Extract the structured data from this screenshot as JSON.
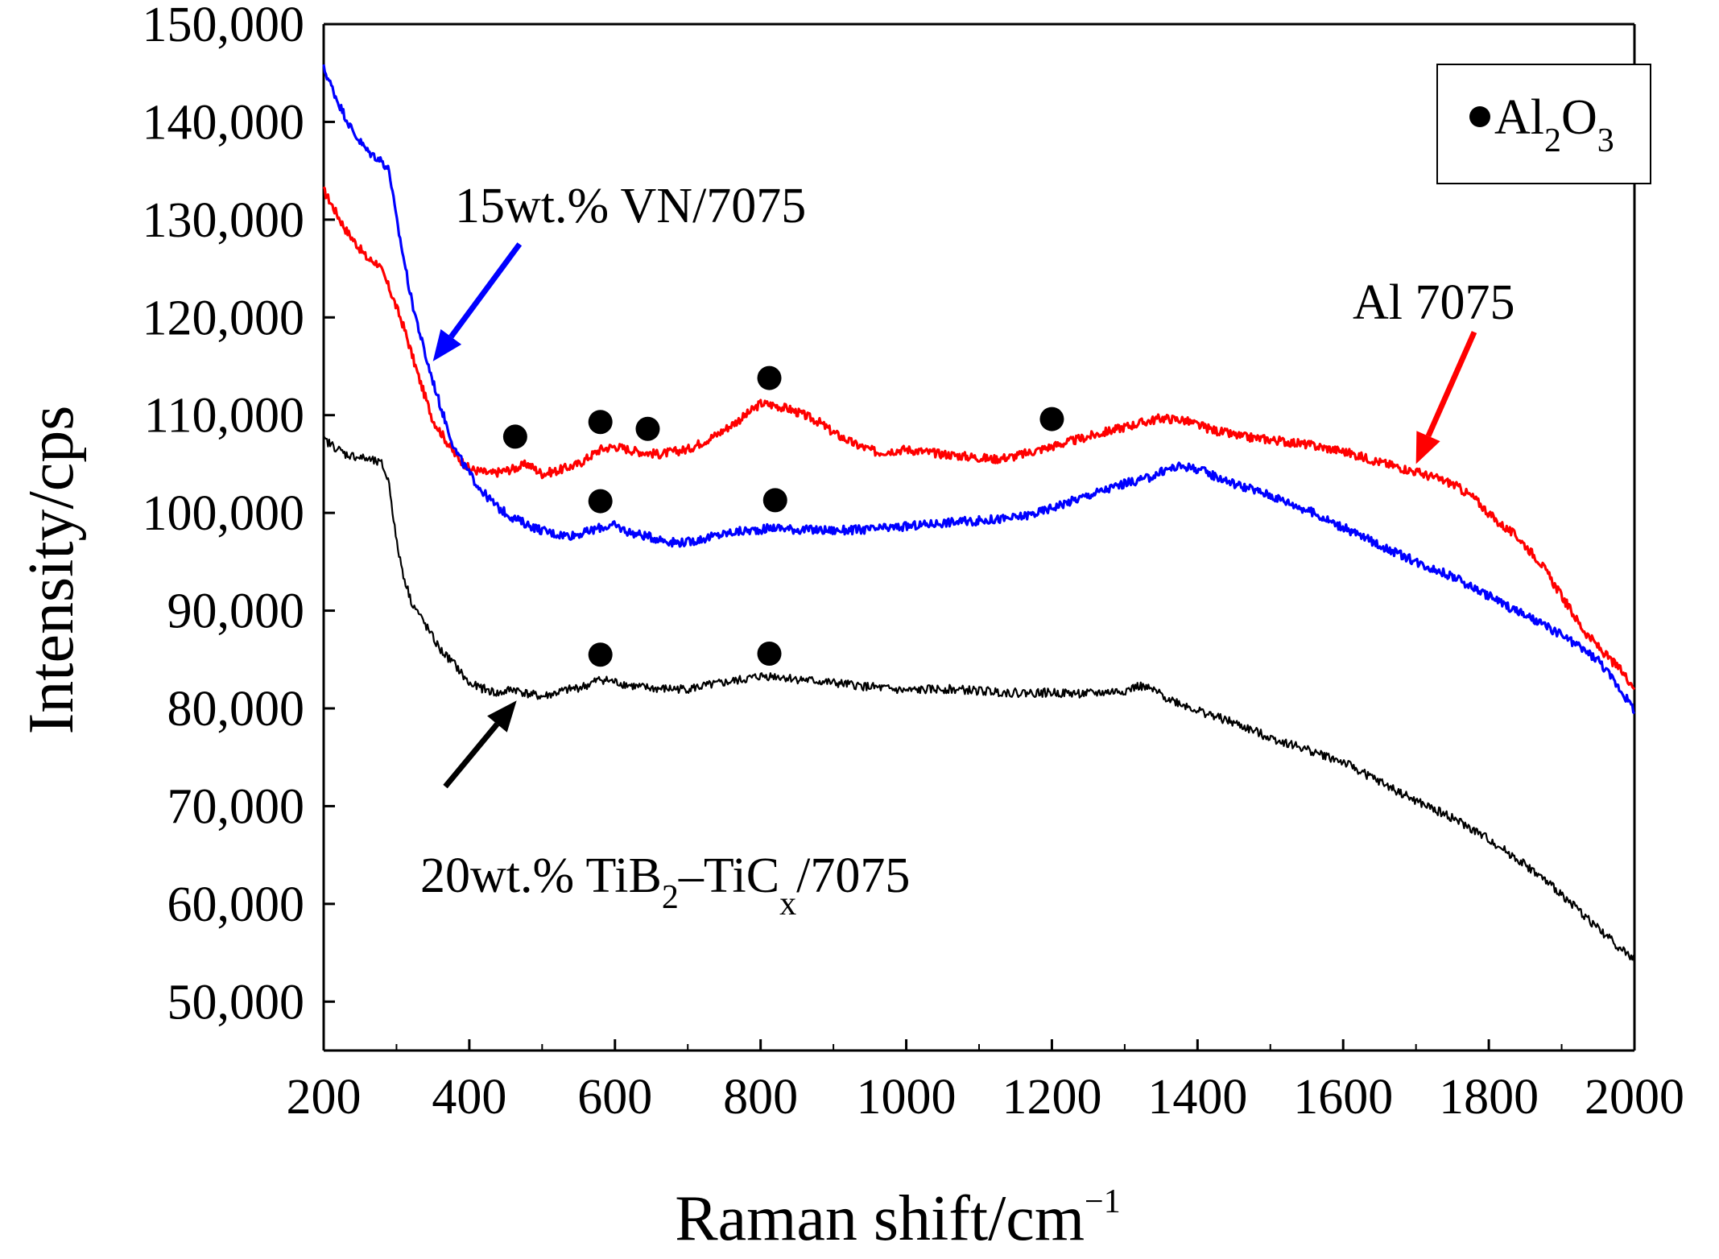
{
  "chart_data": {
    "type": "line",
    "xlabel": "Raman shift/cm",
    "xlabel_sup": "−1",
    "ylabel": "Intensity/cps",
    "xlim": [
      200,
      2000
    ],
    "ylim": [
      45000,
      150000
    ],
    "x_ticks": [
      200,
      400,
      600,
      800,
      1000,
      1200,
      1400,
      1600,
      1800,
      2000
    ],
    "y_ticks": [
      50000,
      60000,
      70000,
      80000,
      90000,
      100000,
      110000,
      120000,
      130000,
      140000,
      150000
    ],
    "x_tick_labels": [
      "200",
      "400",
      "600",
      "800",
      "1000",
      "1200",
      "1400",
      "1600",
      "1800",
      "2000"
    ],
    "y_tick_labels": [
      "50,000",
      "60,000",
      "70,000",
      "80,000",
      "90,000",
      "100,000",
      "110,000",
      "120,000",
      "130,000",
      "140,000",
      "150,000"
    ],
    "grid": false,
    "legend": {
      "position": "top-right",
      "marker": "circle",
      "label_parts": [
        "Al",
        "2",
        "O",
        "3"
      ]
    },
    "series": [
      {
        "key": "al7075",
        "color": "#ff0000",
        "x": [
          200,
          230,
          260,
          275,
          290,
          310,
          330,
          350,
          380,
          400,
          430,
          460,
          480,
          500,
          520,
          550,
          580,
          600,
          630,
          660,
          700,
          740,
          780,
          800,
          820,
          840,
          860,
          880,
          900,
          930,
          960,
          1000,
          1040,
          1080,
          1120,
          1150,
          1180,
          1210,
          1250,
          1300,
          1350,
          1380,
          1420,
          1460,
          1500,
          1550,
          1600,
          1650,
          1700,
          1750,
          1780,
          1810,
          1840,
          1870,
          1900,
          1930,
          1960,
          1980,
          2000
        ],
        "y": [
          133000,
          129000,
          126000,
          125500,
          123000,
          119000,
          114000,
          109500,
          106000,
          104500,
          104000,
          104500,
          105000,
          104000,
          104300,
          105000,
          106500,
          106800,
          106300,
          106000,
          106500,
          108000,
          110000,
          111200,
          111000,
          110600,
          110000,
          109300,
          108200,
          107000,
          106200,
          106500,
          106100,
          105800,
          105500,
          105800,
          106400,
          107000,
          107800,
          108800,
          109700,
          109500,
          108500,
          107800,
          107500,
          107000,
          106300,
          105200,
          104200,
          103000,
          101500,
          99200,
          97500,
          95000,
          91500,
          88000,
          85500,
          84000,
          82200
        ]
      },
      {
        "key": "vn7075",
        "color": "#0000ff",
        "x": [
          200,
          220,
          240,
          260,
          280,
          290,
          300,
          320,
          340,
          360,
          380,
          400,
          420,
          440,
          460,
          480,
          500,
          520,
          540,
          560,
          580,
          600,
          620,
          650,
          680,
          700,
          730,
          760,
          800,
          820,
          850,
          900,
          950,
          1000,
          1050,
          1100,
          1150,
          1180,
          1210,
          1250,
          1300,
          1330,
          1360,
          1380,
          1400,
          1450,
          1500,
          1550,
          1600,
          1650,
          1700,
          1750,
          1800,
          1850,
          1900,
          1950,
          1980,
          2000
        ],
        "y": [
          145500,
          142000,
          139000,
          137000,
          136000,
          135000,
          130000,
          122000,
          116000,
          111000,
          106500,
          104000,
          102000,
          100500,
          99500,
          98800,
          98200,
          97800,
          97700,
          98000,
          98500,
          98700,
          98000,
          97500,
          97000,
          97000,
          97500,
          98000,
          98300,
          98500,
          98300,
          98200,
          98300,
          98600,
          99000,
          99200,
          99500,
          100000,
          100800,
          101800,
          103000,
          103500,
          104500,
          104800,
          104500,
          103000,
          101800,
          100300,
          98500,
          96700,
          95000,
          93500,
          91500,
          89500,
          87500,
          85000,
          82000,
          79800
        ]
      },
      {
        "key": "tib2",
        "color": "#000000",
        "x": [
          200,
          230,
          260,
          280,
          290,
          300,
          310,
          320,
          340,
          360,
          380,
          400,
          420,
          440,
          460,
          480,
          500,
          530,
          560,
          580,
          600,
          630,
          660,
          700,
          740,
          780,
          800,
          820,
          850,
          900,
          950,
          1000,
          1050,
          1100,
          1150,
          1200,
          1250,
          1300,
          1320,
          1340,
          1360,
          1400,
          1450,
          1500,
          1550,
          1600,
          1650,
          1700,
          1750,
          1800,
          1850,
          1900,
          1950,
          2000
        ],
        "y": [
          107500,
          106000,
          105500,
          105000,
          103000,
          97000,
          93500,
          91000,
          88500,
          86000,
          84500,
          82500,
          82000,
          81500,
          82000,
          81500,
          81200,
          81800,
          82300,
          83000,
          82700,
          82200,
          82000,
          82000,
          82500,
          83000,
          83300,
          83300,
          83000,
          82600,
          82200,
          81800,
          82000,
          81800,
          81600,
          81600,
          81500,
          81800,
          82300,
          81800,
          81000,
          79800,
          78500,
          77000,
          75800,
          74500,
          72500,
          70500,
          68800,
          66600,
          64000,
          61000,
          57500,
          54200
        ]
      }
    ],
    "markers": {
      "al7075": [
        [
          463,
          107800
        ],
        [
          580,
          109300
        ],
        [
          645,
          108600
        ],
        [
          812,
          113800
        ],
        [
          1200,
          109600
        ]
      ],
      "vn7075": [
        [
          580,
          101200
        ],
        [
          820,
          101300
        ]
      ],
      "tib2": [
        [
          580,
          85500
        ],
        [
          812,
          85600
        ]
      ]
    },
    "annotations": [
      {
        "key": "vn",
        "parts": [
          "15wt.% VN/7075"
        ],
        "color": "#0000ff",
        "arrow_from": [
          469,
          127500
        ],
        "arrow_to": [
          350,
          115500
        ]
      },
      {
        "key": "al",
        "parts": [
          "Al 7075"
        ],
        "color": "#ff0000",
        "arrow_from": [
          1780,
          118500
        ],
        "arrow_to": [
          1700,
          105000
        ]
      },
      {
        "key": "tib",
        "parts": [
          "20wt.% TiB",
          "2",
          "–TiC",
          "x",
          "/7075"
        ],
        "color": "#000000",
        "arrow_from": [
          367,
          72000
        ],
        "arrow_to": [
          465,
          80800
        ]
      }
    ]
  }
}
